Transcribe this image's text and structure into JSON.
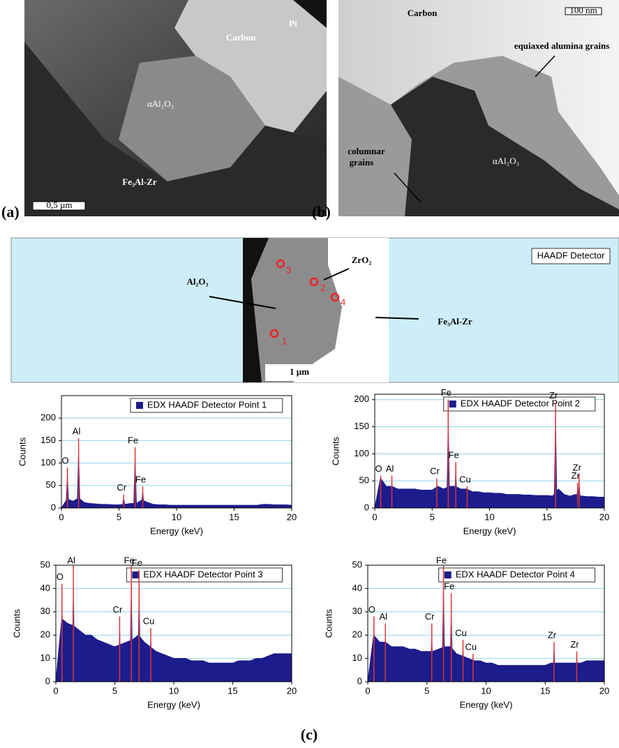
{
  "panel_a": {
    "label": "(a)",
    "carbon": "Carbon",
    "pt": "Pt",
    "alumina": "αAl₂O₃",
    "substrate": "Fe₃Al-Zr",
    "scale_bar": "0,5 µm"
  },
  "panel_b": {
    "label": "(b)",
    "carbon": "Carbon",
    "scale_bar": "100 nm",
    "equiaxed": "equiaxed alumina grains",
    "columnar": [
      "columnar",
      "grains"
    ],
    "alumina": "αAl₂O₃"
  },
  "panel_c": {
    "label": "(c)",
    "detector": "HAADF Detector",
    "alumina": "Al₂O₃",
    "zirconia": "ZrO₂",
    "substrate": "Fe₃Al-Zr",
    "points": [
      "1",
      "2",
      "3",
      "4"
    ],
    "scale_bar": "1 µm"
  },
  "chart_data": [
    {
      "type": "spectrum",
      "xlabel": "Energy (keV)",
      "ylabel": "Counts",
      "xlim": [
        0,
        20
      ],
      "xticks": [
        0,
        5,
        10,
        15,
        20
      ],
      "ylim": [
        0,
        250
      ],
      "yticks": [
        0,
        50,
        100,
        150,
        200
      ],
      "grid": true,
      "x": [
        0,
        0.5,
        1,
        1.5,
        2,
        2.5,
        3,
        3.5,
        4,
        4.5,
        5,
        5.5,
        6,
        6.5,
        7,
        7.5,
        8,
        8.5,
        9,
        9.5,
        10,
        10.5,
        11,
        11.5,
        12,
        12.5,
        13,
        13.5,
        14,
        14.5,
        15,
        15.5,
        16,
        16.5,
        17,
        17.5,
        18,
        18.5,
        19,
        19.5,
        20
      ],
      "series": [
        {
          "name": "EDX HAADF Detector Point 1",
          "color": "#1c1c8c",
          "values": [
            0,
            20,
            15,
            22,
            12,
            10,
            9,
            8,
            8,
            7,
            7,
            8,
            10,
            10,
            18,
            12,
            8,
            7,
            7,
            6,
            6,
            6,
            6,
            6,
            6,
            6,
            6,
            6,
            6,
            6,
            6,
            6,
            6,
            6,
            6,
            8,
            8,
            7,
            7,
            7,
            6
          ]
        }
      ],
      "peak_color": "#e03434",
      "peaks": [
        {
          "label": "O",
          "x": 0.52,
          "value": 90
        },
        {
          "label": "Al",
          "x": 1.49,
          "value": 155
        },
        {
          "label": "Cr",
          "x": 5.41,
          "value": 30
        },
        {
          "label": "Fe",
          "x": 6.4,
          "value": 135
        },
        {
          "label": "Fe",
          "x": 7.06,
          "value": 48
        }
      ]
    },
    {
      "type": "spectrum",
      "xlabel": "Energy (keV)",
      "ylabel": "Counts",
      "xlim": [
        0,
        20
      ],
      "xticks": [
        0,
        5,
        10,
        15,
        20
      ],
      "ylim": [
        0,
        210
      ],
      "yticks": [
        0,
        50,
        100,
        150,
        200
      ],
      "grid": true,
      "x": [
        0,
        0.5,
        1,
        1.5,
        2,
        2.5,
        3,
        3.5,
        4,
        4.5,
        5,
        5.5,
        6,
        6.5,
        7,
        7.5,
        8,
        8.5,
        9,
        9.5,
        10,
        10.5,
        11,
        11.5,
        12,
        12.5,
        13,
        13.5,
        14,
        14.5,
        15,
        15.5,
        16,
        16.5,
        17,
        17.5,
        18,
        18.5,
        19,
        19.5,
        20
      ],
      "series": [
        {
          "name": "EDX HAADF Detector Point 2",
          "color": "#1c1c8c",
          "values": [
            0,
            55,
            40,
            40,
            35,
            35,
            35,
            35,
            33,
            33,
            33,
            40,
            35,
            40,
            40,
            35,
            35,
            30,
            30,
            28,
            28,
            27,
            27,
            25,
            25,
            25,
            24,
            24,
            23,
            23,
            23,
            22,
            35,
            25,
            22,
            25,
            22,
            21,
            21,
            20,
            20
          ]
        }
      ],
      "peak_color": "#e03434",
      "peaks": [
        {
          "label": "O",
          "x": 0.52,
          "value": 60
        },
        {
          "label": "Al",
          "x": 1.49,
          "value": 60
        },
        {
          "label": "Cr",
          "x": 5.41,
          "value": 55
        },
        {
          "label": "Fe",
          "x": 6.4,
          "value": 200
        },
        {
          "label": "Fe",
          "x": 7.06,
          "value": 85
        },
        {
          "label": "Cu",
          "x": 8.05,
          "value": 40
        },
        {
          "label": "Zr",
          "x": 15.75,
          "value": 195
        },
        {
          "label": "Zr",
          "x": 17.67,
          "value": 47
        },
        {
          "label": "Zr",
          "x": 17.8,
          "value": 62
        }
      ]
    },
    {
      "type": "spectrum",
      "xlabel": "Energy (keV)",
      "ylabel": "Counts",
      "xlim": [
        0,
        20
      ],
      "xticks": [
        0,
        5,
        10,
        15,
        20
      ],
      "ylim": [
        0,
        50
      ],
      "yticks": [
        0,
        10,
        20,
        30,
        40,
        50
      ],
      "grid": true,
      "x": [
        0,
        0.5,
        1,
        1.5,
        2,
        2.5,
        3,
        3.5,
        4,
        4.5,
        5,
        5.5,
        6,
        6.5,
        7,
        7.5,
        8,
        8.5,
        9,
        9.5,
        10,
        10.5,
        11,
        11.5,
        12,
        12.5,
        13,
        13.5,
        14,
        14.5,
        15,
        15.5,
        16,
        16.5,
        17,
        17.5,
        18,
        18.5,
        19,
        19.5,
        20
      ],
      "series": [
        {
          "name": "EDX HAADF Detector Point 3",
          "color": "#1c1c8c",
          "values": [
            0,
            27,
            25,
            24,
            22,
            20,
            20,
            18,
            17,
            16,
            15,
            16,
            17,
            18,
            20,
            17,
            15,
            13,
            12,
            11,
            10,
            10,
            10,
            9,
            9,
            9,
            8,
            8,
            8,
            8,
            8,
            9,
            9,
            9,
            10,
            10,
            11,
            12,
            12,
            12,
            12
          ]
        }
      ],
      "peak_color": "#e03434",
      "peaks": [
        {
          "label": "O",
          "x": 0.52,
          "value": 42
        },
        {
          "label": "Al",
          "x": 1.49,
          "value": 50
        },
        {
          "label": "Cr",
          "x": 5.41,
          "value": 28
        },
        {
          "label": "Fe",
          "x": 6.4,
          "value": 50
        },
        {
          "label": "Fe",
          "x": 7.06,
          "value": 48
        },
        {
          "label": "Cu",
          "x": 8.05,
          "value": 23
        }
      ]
    },
    {
      "type": "spectrum",
      "xlabel": "Energy (keV)",
      "ylabel": "Counts",
      "xlim": [
        0,
        20
      ],
      "xticks": [
        0,
        5,
        10,
        15,
        20
      ],
      "ylim": [
        0,
        50
      ],
      "yticks": [
        0,
        10,
        20,
        30,
        40,
        50
      ],
      "grid": true,
      "x": [
        0,
        0.5,
        1,
        1.5,
        2,
        2.5,
        3,
        3.5,
        4,
        4.5,
        5,
        5.5,
        6,
        6.5,
        7,
        7.5,
        8,
        8.5,
        9,
        9.5,
        10,
        10.5,
        11,
        11.5,
        12,
        12.5,
        13,
        13.5,
        14,
        14.5,
        15,
        15.5,
        16,
        16.5,
        17,
        17.5,
        18,
        18.5,
        19,
        19.5,
        20
      ],
      "series": [
        {
          "name": "EDX HAADF Detector Point 4",
          "color": "#1c1c8c",
          "values": [
            0,
            20,
            17,
            17,
            15,
            15,
            15,
            14,
            14,
            13,
            13,
            13,
            14,
            15,
            15,
            12,
            11,
            10,
            9,
            9,
            8,
            8,
            7,
            7,
            7,
            7,
            7,
            7,
            7,
            7,
            7,
            8,
            8,
            8,
            8,
            8,
            8,
            9,
            9,
            9,
            9
          ]
        }
      ],
      "peak_color": "#e03434",
      "peaks": [
        {
          "label": "O",
          "x": 0.52,
          "value": 28
        },
        {
          "label": "Al",
          "x": 1.49,
          "value": 25
        },
        {
          "label": "Cr",
          "x": 5.41,
          "value": 25
        },
        {
          "label": "Fe",
          "x": 6.4,
          "value": 50
        },
        {
          "label": "Fe",
          "x": 7.06,
          "value": 38
        },
        {
          "label": "Cu",
          "x": 8.05,
          "value": 18
        },
        {
          "label": "Cu",
          "x": 8.9,
          "value": 12
        },
        {
          "label": "Zr",
          "x": 15.75,
          "value": 17
        },
        {
          "label": "Zr",
          "x": 17.67,
          "value": 13
        }
      ]
    }
  ]
}
